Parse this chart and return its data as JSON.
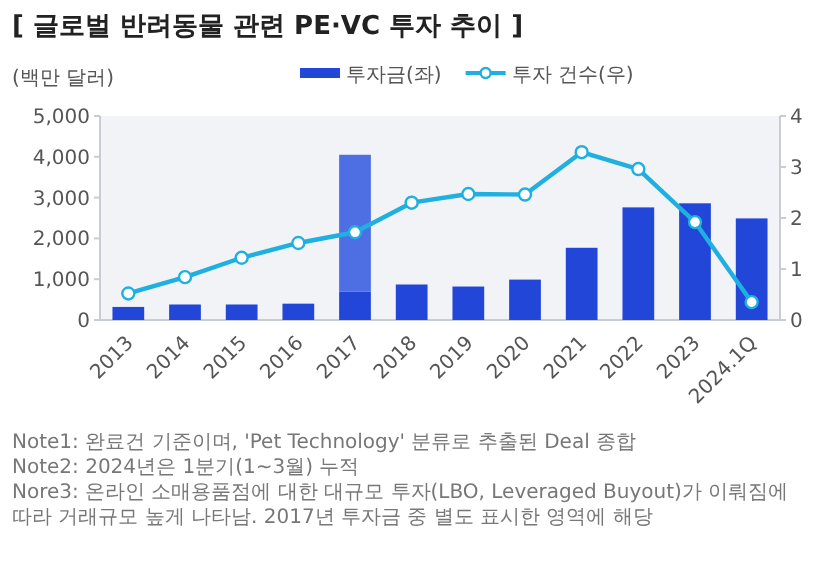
{
  "chart_data": {
    "type": "bar",
    "title": "[ 글로벌 반려동물 관련 PE·VC 투자 추이 ]",
    "ylabel": "(백만 달러)",
    "categories": [
      "2013",
      "2014",
      "2015",
      "2016",
      "2017",
      "2018",
      "2019",
      "2020",
      "2021",
      "2022",
      "2023",
      "2024.1Q"
    ],
    "stacked": true,
    "series": [
      {
        "name": "투자금(좌)",
        "color": "#2246d8",
        "values": [
          320,
          380,
          380,
          400,
          700,
          870,
          820,
          990,
          1770,
          2760,
          2860,
          2490
        ]
      },
      {
        "color": "#4d6fe3",
        "values": [
          null,
          null,
          null,
          null,
          3350,
          null,
          null,
          null,
          null,
          null,
          null,
          null
        ]
      },
      {
        "name": "투자 건수(우)",
        "type": "line",
        "axis": "y2",
        "color": "#1fb0e0",
        "values": [
          0.52,
          0.84,
          1.22,
          1.51,
          1.72,
          2.3,
          2.47,
          2.46,
          3.29,
          2.96,
          1.92,
          0.35
        ]
      }
    ],
    "ylim": [
      0,
      5000
    ],
    "yticks": [
      {
        "value": 0,
        "label": "0"
      },
      {
        "value": 1000,
        "label": "1,000"
      },
      {
        "value": 2000,
        "label": "2,000"
      },
      {
        "value": 3000,
        "label": "3,000"
      },
      {
        "value": 4000,
        "label": "4,000"
      },
      {
        "value": 5000,
        "label": "5,000"
      }
    ],
    "y2lim": [
      0,
      4
    ],
    "y2ticks": [
      0,
      1,
      2,
      3,
      4
    ],
    "legend": "top",
    "marker": "circle",
    "annotations": [
      "Note1: 완료건 기준이며, 'Pet Technology' 분류로 추출된 Deal 종합",
      "Note2: 2024년은 1분기(1~3월) 누적",
      "Nore3: 온라인 소매용품점에 대한 대규모 투자(LBO, Leveraged Buyout)가 이뤄짐에 따라 거래규모 높게 나타남. 2017년 투자금 중 별도 표시한 영역에 해당"
    ]
  }
}
